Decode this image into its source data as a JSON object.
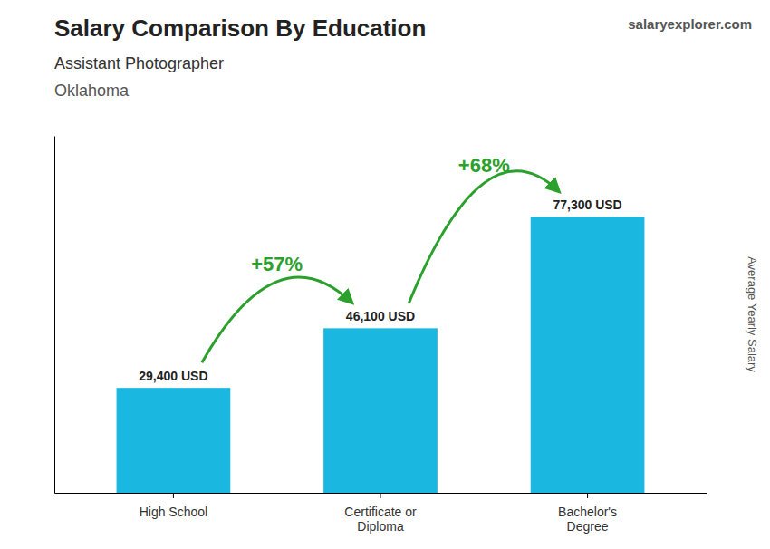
{
  "chart_data": {
    "type": "bar",
    "title": "Salary Comparison By Education",
    "subtitle": "Assistant Photographer",
    "annotations": [
      {
        "text": "Oklahoma"
      },
      {
        "text": "salaryexplorer.com"
      },
      {
        "text": "+57%",
        "from": "High School",
        "to": "Certificate or\nDiploma"
      },
      {
        "text": "+68%",
        "from": "Certificate or\nDiploma",
        "to": "Bachelor's\nDegree"
      }
    ],
    "ylabel": "Average Yearly Salary",
    "categories": [
      "High School",
      "Certificate or\nDiploma",
      "Bachelor's\nDegree"
    ],
    "values": [
      29400,
      46100,
      77300
    ],
    "value_labels": [
      "29,400 USD",
      "46,100 USD",
      "77,300 USD"
    ],
    "data_labels": true,
    "color": "#1ab8e0",
    "ylim": [
      0,
      100000
    ],
    "tick_labels": "x",
    "grid": false
  }
}
